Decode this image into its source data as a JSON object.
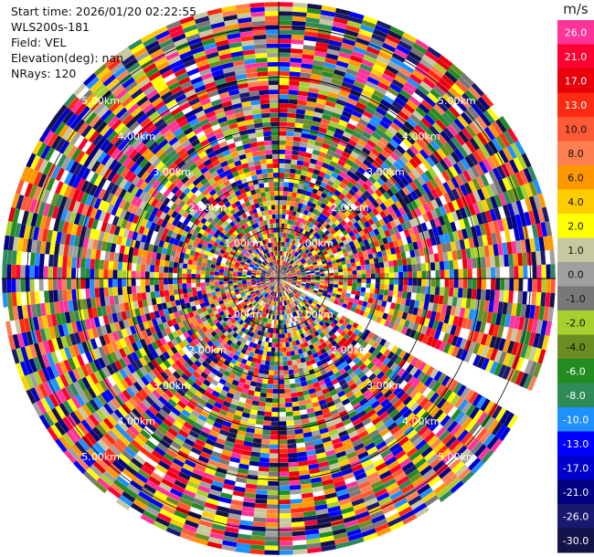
{
  "header": {
    "start_time": "Start time: 2026/01/20 02:22:55",
    "instrument": "WLS200s-181",
    "field": "Field: VEL",
    "elevation": "Elevation(deg): nan",
    "nrays": "NRays: 120"
  },
  "chart_data": {
    "type": "heatmap",
    "projection": "polar-ppi",
    "field": "VEL",
    "n_rays": 120,
    "n_gates": 60,
    "max_range_km": 5.5,
    "range_ring_labels": [
      "1.00km",
      "2.00km",
      "3.00km",
      "4.00km",
      "5.00km"
    ],
    "range_rings_km": [
      1,
      2,
      3,
      4,
      5
    ],
    "missing_sector_azimuth_deg": [
      113,
      120
    ],
    "colorbar": {
      "unit": "m/s",
      "ticks": [
        "26.0",
        "21.0",
        "17.0",
        "13.0",
        "10.0",
        "8.0",
        "6.0",
        "4.0",
        "2.0",
        "1.0",
        "0.0",
        "-1.0",
        "-2.0",
        "-4.0",
        "-6.0",
        "-8.0",
        "-10.0",
        "-13.0",
        "-17.0",
        "-21.0",
        "-26.0",
        "-30.0"
      ],
      "colors": [
        "#ff3399",
        "#ff0033",
        "#e8000b",
        "#ff2a12",
        "#ff5a36",
        "#ff7f50",
        "#ff9800",
        "#ffcc00",
        "#ffff00",
        "#c8c8a0",
        "#a0a0a0",
        "#787878",
        "#a6d02e",
        "#6b8e23",
        "#228b22",
        "#2e8b57",
        "#1e90ff",
        "#0000ff",
        "#0000cd",
        "#000080",
        "#191970",
        "#13134a"
      ]
    }
  }
}
